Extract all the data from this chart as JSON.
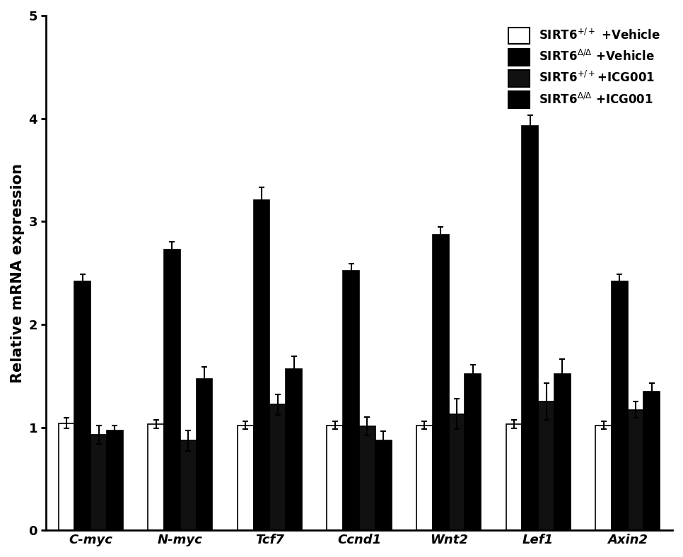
{
  "categories": [
    "C-myc",
    "N-myc",
    "Tcf7",
    "Ccnd1",
    "Wnt2",
    "Lef1",
    "Axin2"
  ],
  "groups": [
    {
      "label": "SIRT6$^{+/+}$ +Vehicle",
      "color": "#ffffff",
      "edgecolor": "#000000",
      "values": [
        1.04,
        1.03,
        1.02,
        1.02,
        1.02,
        1.03,
        1.02
      ],
      "errors": [
        0.05,
        0.04,
        0.04,
        0.04,
        0.04,
        0.04,
        0.04
      ]
    },
    {
      "label": "SIRT6$^{\\Delta/\\Delta}$ +Vehicle",
      "color": "#000000",
      "edgecolor": "#000000",
      "values": [
        2.42,
        2.73,
        3.21,
        2.52,
        2.87,
        3.93,
        2.42
      ],
      "errors": [
        0.07,
        0.07,
        0.12,
        0.07,
        0.08,
        0.1,
        0.07
      ]
    },
    {
      "label": "SIRT6$^{+/+}$+ICG001",
      "color": "#111111",
      "edgecolor": "#000000",
      "values": [
        0.93,
        0.87,
        1.22,
        1.01,
        1.13,
        1.25,
        1.17
      ],
      "errors": [
        0.09,
        0.1,
        0.1,
        0.09,
        0.15,
        0.18,
        0.08
      ]
    },
    {
      "label": "SIRT6$^{\\Delta/\\Delta}$ +ICG001",
      "color": "#000000",
      "edgecolor": "#000000",
      "values": [
        0.97,
        1.47,
        1.57,
        0.87,
        1.52,
        1.52,
        1.35
      ],
      "errors": [
        0.05,
        0.12,
        0.12,
        0.09,
        0.09,
        0.14,
        0.08
      ]
    }
  ],
  "ylabel": "Relative mRNA expression",
  "ylim": [
    0,
    5
  ],
  "yticks": [
    0,
    1,
    2,
    3,
    4,
    5
  ],
  "bar_width": 0.18,
  "legend_fontsize": 12,
  "axis_fontsize": 15,
  "tick_fontsize": 13,
  "figsize": [
    9.66,
    7.88
  ],
  "dpi": 100
}
